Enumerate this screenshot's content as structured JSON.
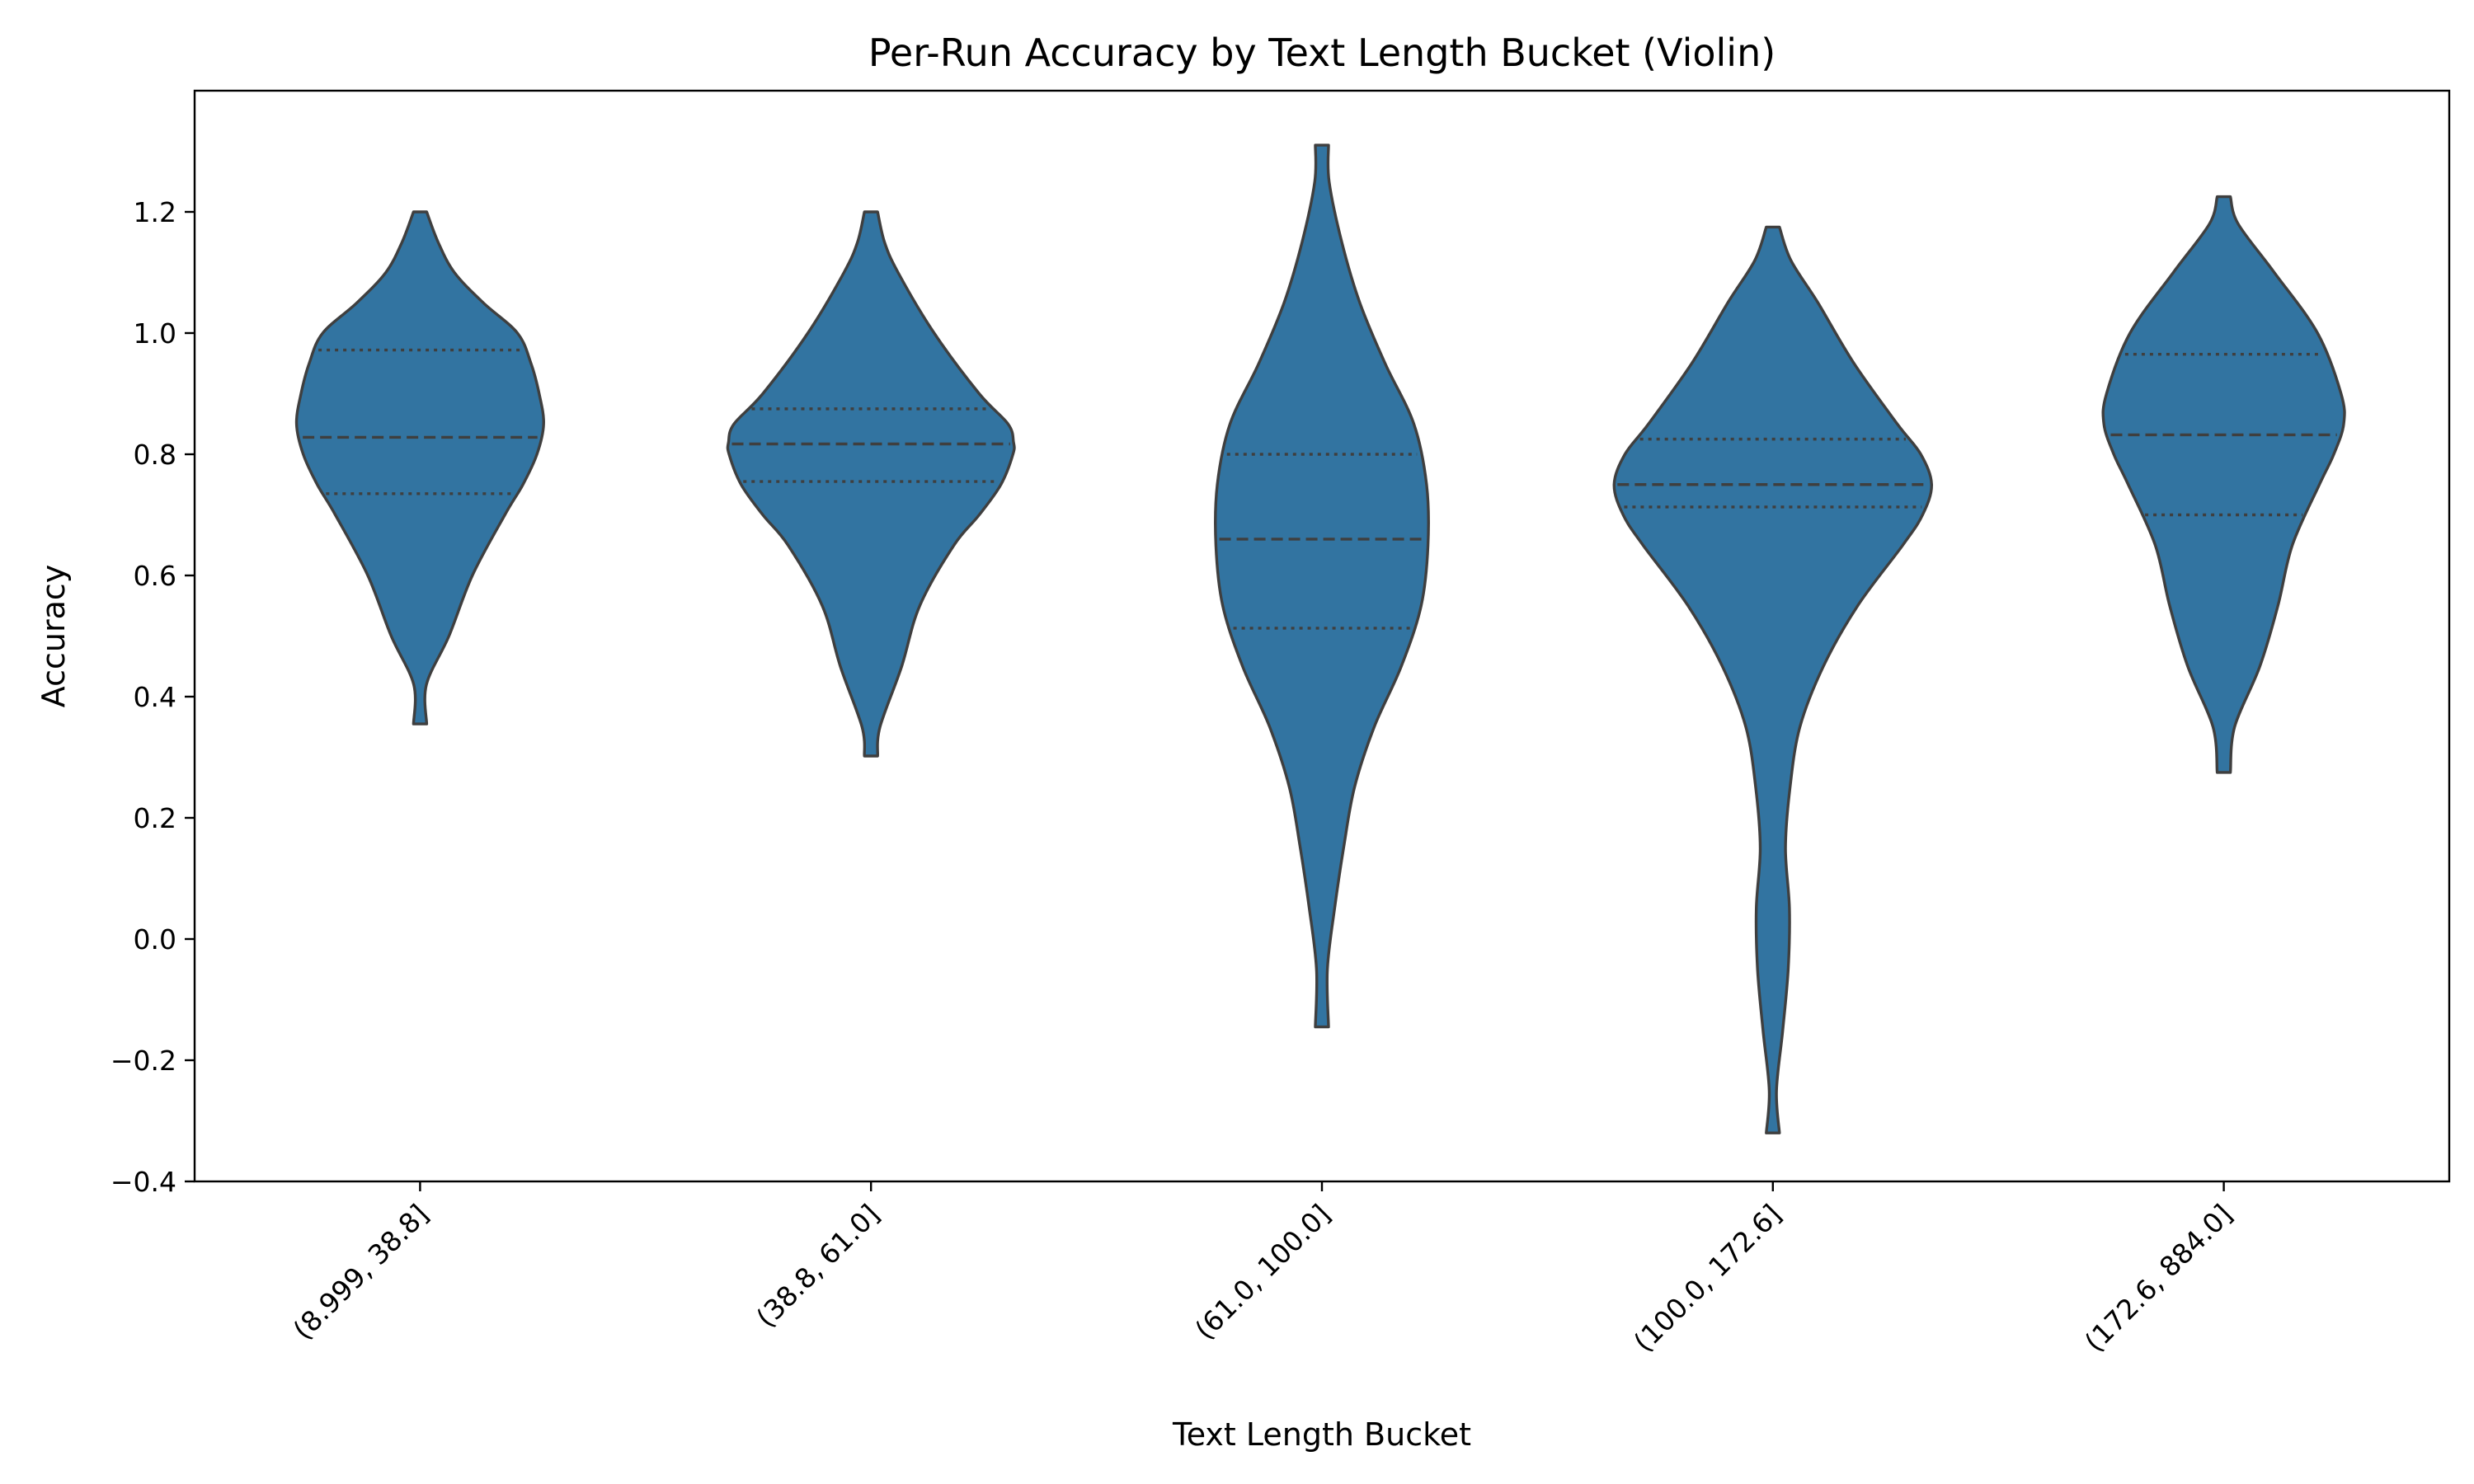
{
  "chart_data": {
    "type": "violin",
    "title": "Per-Run Accuracy by Text Length Bucket (Violin)",
    "xlabel": "Text Length Bucket",
    "ylabel": "Accuracy",
    "ylim": [
      -0.4,
      1.4
    ],
    "yticks": [
      -0.4,
      -0.2,
      0.0,
      0.2,
      0.4,
      0.6,
      0.8,
      1.0,
      1.2
    ],
    "ytick_labels": [
      "−0.4",
      "−0.2",
      "0.0",
      "0.2",
      "0.4",
      "0.6",
      "0.8",
      "1.0",
      "1.2"
    ],
    "categories": [
      "(8.999, 38.8]",
      "(38.8, 61.0]",
      "(61.0, 100.0]",
      "(100.0, 172.6]",
      "(172.6, 884.0]"
    ],
    "inner": "quartile",
    "grid": false,
    "fill_color": "#3274a1",
    "edge_color": "#3f3f3f",
    "violins": [
      {
        "category": "(8.999, 38.8]",
        "min": 0.355,
        "max": 1.2,
        "q1": 0.735,
        "median": 0.828,
        "q3": 0.972,
        "profile_y": [
          0.355,
          0.42,
          0.5,
          0.6,
          0.7,
          0.75,
          0.8,
          0.85,
          0.9,
          0.95,
          1.0,
          1.05,
          1.1,
          1.15,
          1.2
        ],
        "profile_half_width": [
          0.0,
          0.035,
          0.16,
          0.29,
          0.47,
          0.57,
          0.648,
          0.685,
          0.66,
          0.615,
          0.54,
          0.35,
          0.19,
          0.1,
          0.0
        ]
      },
      {
        "category": "(38.8, 61.0]",
        "min": 0.302,
        "max": 1.2,
        "q1": 0.755,
        "median": 0.817,
        "q3": 0.875,
        "profile_y": [
          0.302,
          0.35,
          0.45,
          0.55,
          0.65,
          0.7,
          0.75,
          0.8,
          0.82,
          0.85,
          0.9,
          1.0,
          1.1,
          1.15,
          1.2
        ],
        "profile_half_width": [
          0.0,
          0.05,
          0.17,
          0.27,
          0.46,
          0.6,
          0.72,
          0.787,
          0.79,
          0.76,
          0.6,
          0.35,
          0.15,
          0.075,
          0.0
        ]
      },
      {
        "category": "(61.0, 100.0]",
        "min": -0.145,
        "max": 1.31,
        "q1": 0.513,
        "median": 0.66,
        "q3": 0.8,
        "profile_y": [
          -0.145,
          -0.05,
          0.05,
          0.15,
          0.25,
          0.35,
          0.45,
          0.55,
          0.65,
          0.75,
          0.85,
          0.95,
          1.05,
          1.15,
          1.25,
          1.31
        ],
        "profile_half_width": [
          0.0,
          0.03,
          0.07,
          0.12,
          0.18,
          0.29,
          0.44,
          0.55,
          0.588,
          0.58,
          0.51,
          0.35,
          0.21,
          0.11,
          0.04,
          0.0
        ]
      },
      {
        "category": "(100.0, 172.6]",
        "min": -0.32,
        "max": 1.175,
        "q1": 0.713,
        "median": 0.75,
        "q3": 0.825,
        "profile_y": [
          -0.32,
          -0.25,
          -0.15,
          -0.05,
          0.05,
          0.15,
          0.25,
          0.35,
          0.45,
          0.55,
          0.65,
          0.7,
          0.75,
          0.8,
          0.85,
          0.95,
          1.05,
          1.12,
          1.175
        ],
        "profile_half_width": [
          0.0,
          0.02,
          0.055,
          0.085,
          0.092,
          0.07,
          0.095,
          0.15,
          0.28,
          0.47,
          0.72,
          0.83,
          0.88,
          0.82,
          0.69,
          0.45,
          0.25,
          0.1,
          0.0
        ]
      },
      {
        "category": "(172.6, 884.0]",
        "min": 0.275,
        "max": 1.225,
        "q1": 0.7,
        "median": 0.832,
        "q3": 0.965,
        "profile_y": [
          0.275,
          0.35,
          0.45,
          0.55,
          0.65,
          0.75,
          0.8,
          0.85,
          0.9,
          1.0,
          1.1,
          1.18,
          1.225
        ],
        "profile_half_width": [
          0.0,
          0.06,
          0.2,
          0.3,
          0.38,
          0.53,
          0.61,
          0.665,
          0.65,
          0.52,
          0.28,
          0.08,
          0.0
        ]
      }
    ]
  }
}
